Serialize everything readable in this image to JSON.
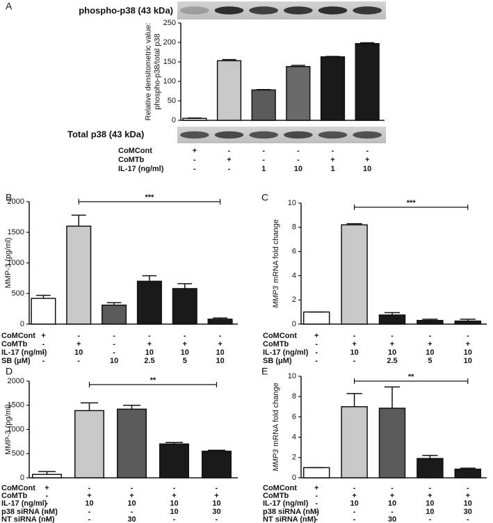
{
  "chart_data": [
    {
      "type": "bar",
      "panel": "A",
      "ylabel": [
        "Relative densitometric value:",
        "phospho-p38/total p38"
      ],
      "blot_labels": [
        "phospho-p38 (43 kDa)",
        "Total p38 (43 kDa)"
      ],
      "values": [
        5,
        153,
        78,
        138,
        163,
        197
      ],
      "errors": [
        1,
        3,
        1,
        3,
        1,
        2
      ],
      "colors": [
        "#ffffff",
        "#c8c8c8",
        "#5a5a5a",
        "#6a6a6a",
        "#1a1a1a",
        "#1a1a1a"
      ],
      "ylim": [
        0,
        250
      ],
      "yticks": [
        0,
        50,
        100,
        150,
        200,
        250
      ],
      "conditions": {
        "labels": [
          "CoMCont",
          "CoMTb",
          "IL-17 (ng/ml)"
        ],
        "rows": [
          [
            "+",
            "-",
            "-",
            "-",
            "-",
            "-"
          ],
          [
            "-",
            "+",
            "-",
            "-",
            "+",
            "+"
          ],
          [
            "-",
            "-",
            "1",
            "10",
            "1",
            "10"
          ]
        ]
      }
    },
    {
      "type": "bar",
      "panel": "B",
      "ylabel": [
        "MMP-3 (pg/ml)"
      ],
      "annotation": "***",
      "values": [
        420,
        1600,
        310,
        700,
        580,
        80
      ],
      "errors": [
        50,
        180,
        40,
        90,
        80,
        20
      ],
      "colors": [
        "#ffffff",
        "#c8c8c8",
        "#5a5a5a",
        "#1a1a1a",
        "#1a1a1a",
        "#1a1a1a"
      ],
      "ylim": [
        0,
        2000
      ],
      "yticks": [
        0,
        500,
        1000,
        1500,
        2000
      ],
      "conditions": {
        "labels": [
          "CoMCont",
          "CoMTb",
          "IL-17 (ng/ml)",
          "SB (μM)"
        ],
        "rows": [
          [
            "+",
            "-",
            "-",
            "-",
            "-",
            "-"
          ],
          [
            "-",
            "+",
            "-",
            "+",
            "+",
            "+"
          ],
          [
            "-",
            "10",
            "-",
            "10",
            "10",
            "10"
          ],
          [
            "-",
            "-",
            "10",
            "2.5",
            "5",
            "10"
          ]
        ]
      }
    },
    {
      "type": "bar",
      "panel": "C",
      "ylabel_italic": "MMP3",
      "ylabel": [
        "mRNA fold change"
      ],
      "annotation": "***",
      "values": [
        1.0,
        8.2,
        0.75,
        0.3,
        0.25
      ],
      "errors": [
        0,
        0.1,
        0.2,
        0.1,
        0.15
      ],
      "colors": [
        "#ffffff",
        "#c8c8c8",
        "#1a1a1a",
        "#1a1a1a",
        "#1a1a1a"
      ],
      "ylim": [
        0,
        10
      ],
      "yticks": [
        0,
        2,
        4,
        6,
        8,
        10
      ],
      "conditions": {
        "labels": [
          "CoMCont",
          "CoMTb",
          "IL-17 (ng/ml)",
          "SB (μM)"
        ],
        "rows": [
          [
            "+",
            "-",
            "-",
            "-",
            "-"
          ],
          [
            "-",
            "+",
            "+",
            "+",
            "+"
          ],
          [
            "-",
            "10",
            "10",
            "10",
            "10"
          ],
          [
            "-",
            "-",
            "2.5",
            "5",
            "10"
          ]
        ]
      }
    },
    {
      "type": "bar",
      "panel": "D",
      "ylabel": [
        "MMP-3 (pg/ml)"
      ],
      "annotation": "**",
      "values": [
        70,
        1390,
        1420,
        700,
        550
      ],
      "errors": [
        60,
        160,
        80,
        30,
        20
      ],
      "colors": [
        "#ffffff",
        "#c8c8c8",
        "#5a5a5a",
        "#1a1a1a",
        "#1a1a1a"
      ],
      "ylim": [
        0,
        2000
      ],
      "yticks": [
        0,
        500,
        1000,
        1500,
        2000
      ],
      "conditions": {
        "labels": [
          "CoMCont",
          "CoMTb",
          "IL-17 (ng/ml)",
          "p38 siRNA (nM)",
          "NT siRNA (nM)"
        ],
        "rows": [
          [
            "+",
            "-",
            "-",
            "-",
            "-"
          ],
          [
            "-",
            "+",
            "+",
            "+",
            "+"
          ],
          [
            "-",
            "10",
            "10",
            "10",
            "10"
          ],
          [
            "-",
            "-",
            "-",
            "10",
            "30"
          ],
          [
            "-",
            "-",
            "30",
            "-",
            "-"
          ]
        ]
      }
    },
    {
      "type": "bar",
      "panel": "E",
      "ylabel_italic": "MMP3",
      "ylabel": [
        "mRNA fold change"
      ],
      "annotation": "**",
      "values": [
        1.0,
        7.0,
        6.85,
        1.9,
        0.85
      ],
      "errors": [
        0,
        1.3,
        2.1,
        0.3,
        0.1
      ],
      "colors": [
        "#ffffff",
        "#c8c8c8",
        "#5a5a5a",
        "#1a1a1a",
        "#1a1a1a"
      ],
      "ylim": [
        0,
        10
      ],
      "yticks": [
        0,
        2,
        4,
        6,
        8,
        10
      ],
      "conditions": {
        "labels": [
          "CoMCont",
          "CoMTb",
          "IL-17 (ng/ml)",
          "p38 siRNA (nM)",
          "NT siRNA (nM)"
        ],
        "rows": [
          [
            "+",
            "-",
            "-",
            "-",
            "-"
          ],
          [
            "-",
            "+",
            "+",
            "+",
            "+"
          ],
          [
            "-",
            "10",
            "10",
            "10",
            "10"
          ],
          [
            "-",
            "-",
            "-",
            "10",
            "30"
          ],
          [
            "-",
            "-",
            "30",
            "-",
            "-"
          ]
        ]
      }
    }
  ]
}
